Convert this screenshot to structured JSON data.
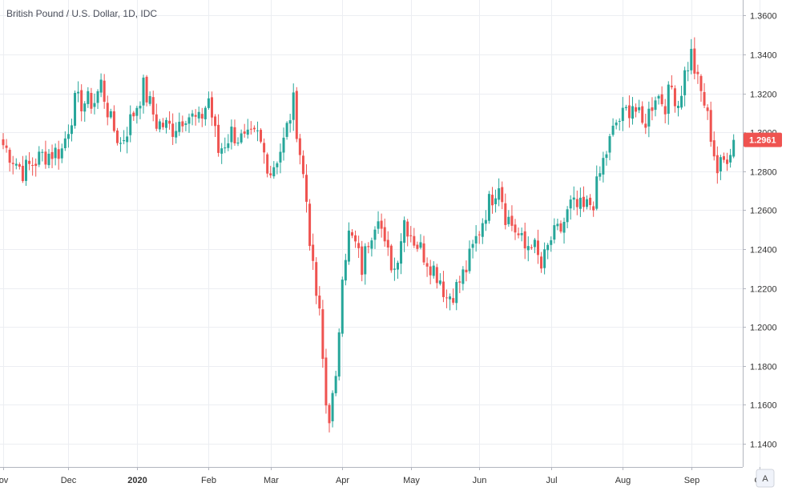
{
  "chart_data": {
    "type": "candlestick",
    "title": "British Pound / U.S. Dollar, 1D, IDC",
    "y_ticks": [
      "1.3600",
      "1.3400",
      "1.3200",
      "1.3000",
      "1.2800",
      "1.2600",
      "1.2400",
      "1.2200",
      "1.2000",
      "1.1800",
      "1.1600",
      "1.1400"
    ],
    "ylim": [
      1.128,
      1.368
    ],
    "x_ticks": [
      {
        "label": "ov",
        "index": 0,
        "bold": false
      },
      {
        "label": "Dec",
        "index": 20,
        "bold": false
      },
      {
        "label": "2020",
        "index": 41,
        "bold": true
      },
      {
        "label": "Feb",
        "index": 63,
        "bold": false
      },
      {
        "label": "Mar",
        "index": 82,
        "bold": false
      },
      {
        "label": "Apr",
        "index": 104,
        "bold": false
      },
      {
        "label": "May",
        "index": 125,
        "bold": false
      },
      {
        "label": "Jun",
        "index": 146,
        "bold": false
      },
      {
        "label": "Jul",
        "index": 168,
        "bold": false
      },
      {
        "label": "Aug",
        "index": 190,
        "bold": false
      },
      {
        "label": "Sep",
        "index": 211,
        "bold": false
      },
      {
        "label": "Oc",
        "index": 232,
        "bold": false
      }
    ],
    "last_price": "1.2961",
    "up_color": "#26a69a",
    "down_color": "#ef5350",
    "close_path": [
      [
        0,
        1.2935
      ],
      [
        6,
        1.28
      ],
      [
        12,
        1.288
      ],
      [
        18,
        1.291
      ],
      [
        22,
        1.315
      ],
      [
        28,
        1.316
      ],
      [
        30,
        1.325
      ],
      [
        33,
        1.305
      ],
      [
        36,
        1.294
      ],
      [
        40,
        1.31
      ],
      [
        43,
        1.323
      ],
      [
        47,
        1.305
      ],
      [
        52,
        1.302
      ],
      [
        56,
        1.31
      ],
      [
        60,
        1.305
      ],
      [
        63,
        1.3175
      ],
      [
        66,
        1.29
      ],
      [
        70,
        1.3
      ],
      [
        74,
        1.295
      ],
      [
        78,
        1.298
      ],
      [
        82,
        1.28
      ],
      [
        86,
        1.295
      ],
      [
        88,
        1.309
      ],
      [
        89,
        1.315
      ],
      [
        91,
        1.29
      ],
      [
        93,
        1.265
      ],
      [
        95,
        1.228
      ],
      [
        97,
        1.205
      ],
      [
        99,
        1.16
      ],
      [
        100,
        1.155
      ],
      [
        102,
        1.17
      ],
      [
        104,
        1.23
      ],
      [
        106,
        1.247
      ],
      [
        108,
        1.242
      ],
      [
        110,
        1.23
      ],
      [
        112,
        1.245
      ],
      [
        115,
        1.26
      ],
      [
        117,
        1.24
      ],
      [
        120,
        1.23
      ],
      [
        123,
        1.255
      ],
      [
        126,
        1.245
      ],
      [
        130,
        1.235
      ],
      [
        134,
        1.225
      ],
      [
        136,
        1.215
      ],
      [
        139,
        1.22
      ],
      [
        142,
        1.23
      ],
      [
        145,
        1.245
      ],
      [
        148,
        1.26
      ],
      [
        152,
        1.275
      ],
      [
        154,
        1.258
      ],
      [
        157,
        1.25
      ],
      [
        160,
        1.24
      ],
      [
        162,
        1.245
      ],
      [
        165,
        1.23
      ],
      [
        168,
        1.245
      ],
      [
        171,
        1.25
      ],
      [
        174,
        1.262
      ],
      [
        178,
        1.26
      ],
      [
        181,
        1.265
      ],
      [
        184,
        1.285
      ],
      [
        186,
        1.295
      ],
      [
        188,
        1.305
      ],
      [
        190,
        1.308
      ],
      [
        193,
        1.315
      ],
      [
        196,
        1.303
      ],
      [
        198,
        1.31
      ],
      [
        200,
        1.32
      ],
      [
        203,
        1.315
      ],
      [
        205,
        1.323
      ],
      [
        207,
        1.315
      ],
      [
        209,
        1.33
      ],
      [
        211,
        1.34
      ],
      [
        213,
        1.325
      ],
      [
        215,
        1.315
      ],
      [
        217,
        1.299
      ],
      [
        219,
        1.28
      ],
      [
        221,
        1.285
      ],
      [
        224,
        1.2961
      ]
    ]
  }
}
